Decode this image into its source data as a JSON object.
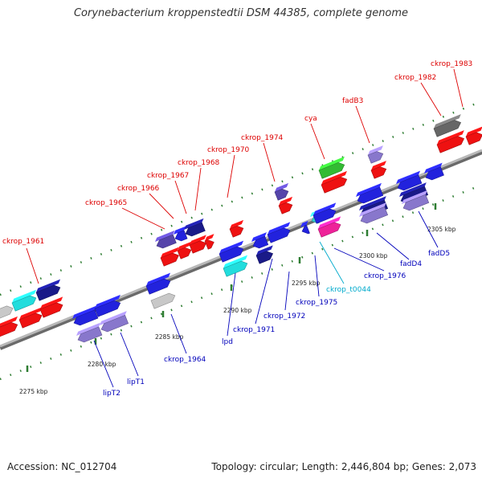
{
  "title": "Corynebacterium kroppenstedtii DSM 44385, complete genome",
  "footer": {
    "accession": "Accession: NC_012704",
    "summary": "Topology: circular; Length: 2,446,804 bp; Genes: 2,073"
  },
  "colors": {
    "backbone": "#8c8c8c",
    "upper_label": "#dd0000",
    "lower_label": "#0000bb",
    "trna_label": "#00aacc",
    "tick": "#2e7d32"
  },
  "kbp_ticks": [
    {
      "label": "2275 kbp",
      "side": "lower"
    },
    {
      "label": "2280 kbp",
      "side": "lower"
    },
    {
      "label": "2285 kbp",
      "side": "lower"
    },
    {
      "label": "2290 kbp",
      "side": "lower"
    },
    {
      "label": "2295 kbp",
      "side": "lower"
    },
    {
      "label": "2300 kbp",
      "side": "lower"
    },
    {
      "label": "2305 kbp",
      "side": "lower"
    }
  ],
  "gene_labels_upper": [
    {
      "name": "ckrop_1961",
      "color": "#dd0000"
    },
    {
      "name": "ckrop_1965",
      "color": "#dd0000"
    },
    {
      "name": "ckrop_1966",
      "color": "#dd0000"
    },
    {
      "name": "ckrop_1967",
      "color": "#dd0000"
    },
    {
      "name": "ckrop_1968",
      "color": "#dd0000"
    },
    {
      "name": "ckrop_1970",
      "color": "#dd0000"
    },
    {
      "name": "ckrop_1974",
      "color": "#dd0000"
    },
    {
      "name": "cya",
      "color": "#dd0000"
    },
    {
      "name": "fadB3",
      "color": "#dd0000"
    },
    {
      "name": "ckrop_1982",
      "color": "#dd0000"
    },
    {
      "name": "ckrop_1983",
      "color": "#dd0000"
    }
  ],
  "gene_labels_lower": [
    {
      "name": "lipT2",
      "color": "#0000bb"
    },
    {
      "name": "lipT1",
      "color": "#0000bb"
    },
    {
      "name": "ckrop_1964",
      "color": "#0000bb"
    },
    {
      "name": "lpd",
      "color": "#0000bb"
    },
    {
      "name": "ckrop_1971",
      "color": "#0000bb"
    },
    {
      "name": "ckrop_1972",
      "color": "#0000bb"
    },
    {
      "name": "ckrop_1975",
      "color": "#0000bb"
    },
    {
      "name": "ckrop_t0044",
      "color": "#00aacc"
    },
    {
      "name": "ckrop_1976",
      "color": "#0000bb"
    },
    {
      "name": "fadD4",
      "color": "#0000bb"
    },
    {
      "name": "fadD5",
      "color": "#0000bb"
    }
  ]
}
